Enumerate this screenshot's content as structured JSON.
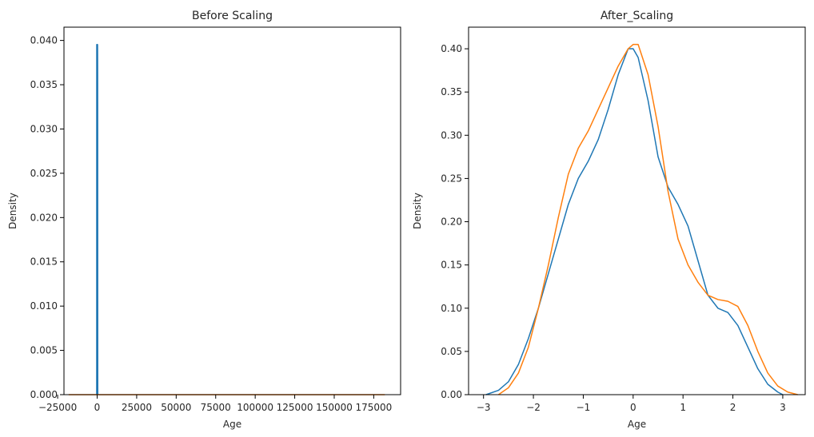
{
  "chart_data": [
    {
      "type": "line",
      "title": "Before Scaling",
      "xlabel": "Age",
      "ylabel": "Density",
      "xlim": [
        -21000,
        192000
      ],
      "ylim": [
        0,
        0.0415
      ],
      "xticks": [
        -25000,
        0,
        25000,
        50000,
        75000,
        100000,
        125000,
        150000,
        175000
      ],
      "xtick_labels": [
        "−25000",
        "0",
        "25000",
        "50000",
        "75000",
        "100000",
        "125000",
        "150000",
        "175000"
      ],
      "yticks": [
        0.0,
        0.005,
        0.01,
        0.015,
        0.02,
        0.025,
        0.03,
        0.035,
        0.04
      ],
      "ytick_labels": [
        "0.000",
        "0.005",
        "0.010",
        "0.015",
        "0.020",
        "0.025",
        "0.030",
        "0.035",
        "0.040"
      ],
      "grid": false,
      "series": [
        {
          "color": "#1f77b4",
          "x": [
            -40,
            -20,
            -10,
            0,
            10,
            20,
            40,
            60,
            80,
            100,
            120,
            140
          ],
          "y": [
            0,
            0.0035,
            0.03,
            0.0395,
            0.0392,
            0.0388,
            0.0375,
            0.036,
            0.03,
            0.012,
            0.002,
            0
          ]
        },
        {
          "color": "#ff7f0e",
          "x": [
            -18000,
            0,
            25000,
            50000,
            75000,
            100000,
            125000,
            150000,
            175000,
            182000
          ],
          "y": [
            0,
            4e-06,
            5e-06,
            4e-06,
            3e-06,
            2e-06,
            2e-06,
            1e-06,
            1e-06,
            0
          ]
        }
      ]
    },
    {
      "type": "line",
      "title": "After_Scaling",
      "xlabel": "Age",
      "ylabel": "Density",
      "xlim": [
        -3.3,
        3.45
      ],
      "ylim": [
        0,
        0.425
      ],
      "xticks": [
        -3,
        -2,
        -1,
        0,
        1,
        2,
        3
      ],
      "xtick_labels": [
        "−3",
        "−2",
        "−1",
        "0",
        "1",
        "2",
        "3"
      ],
      "yticks": [
        0.0,
        0.05,
        0.1,
        0.15,
        0.2,
        0.25,
        0.3,
        0.35,
        0.4
      ],
      "ytick_labels": [
        "0.00",
        "0.05",
        "0.10",
        "0.15",
        "0.20",
        "0.25",
        "0.30",
        "0.35",
        "0.40"
      ],
      "grid": false,
      "series": [
        {
          "color": "#1f77b4",
          "x": [
            -2.95,
            -2.7,
            -2.5,
            -2.3,
            -2.1,
            -1.9,
            -1.7,
            -1.5,
            -1.3,
            -1.1,
            -0.9,
            -0.7,
            -0.5,
            -0.3,
            -0.1,
            0.0,
            0.1,
            0.3,
            0.5,
            0.7,
            0.9,
            1.1,
            1.3,
            1.5,
            1.7,
            1.9,
            2.1,
            2.3,
            2.5,
            2.7,
            2.9,
            3.0
          ],
          "y": [
            0.0,
            0.005,
            0.015,
            0.035,
            0.065,
            0.1,
            0.14,
            0.18,
            0.22,
            0.25,
            0.27,
            0.295,
            0.33,
            0.37,
            0.4,
            0.4,
            0.39,
            0.34,
            0.275,
            0.24,
            0.22,
            0.195,
            0.155,
            0.115,
            0.1,
            0.095,
            0.08,
            0.055,
            0.03,
            0.012,
            0.003,
            0.0
          ]
        },
        {
          "color": "#ff7f0e",
          "x": [
            -2.7,
            -2.5,
            -2.3,
            -2.1,
            -1.9,
            -1.7,
            -1.5,
            -1.3,
            -1.1,
            -0.9,
            -0.7,
            -0.5,
            -0.3,
            -0.1,
            0.0,
            0.1,
            0.3,
            0.5,
            0.7,
            0.9,
            1.1,
            1.3,
            1.5,
            1.7,
            1.9,
            2.1,
            2.3,
            2.5,
            2.7,
            2.9,
            3.1,
            3.3
          ],
          "y": [
            0.0,
            0.008,
            0.025,
            0.055,
            0.1,
            0.15,
            0.205,
            0.255,
            0.285,
            0.305,
            0.33,
            0.355,
            0.38,
            0.4,
            0.405,
            0.405,
            0.37,
            0.31,
            0.235,
            0.18,
            0.15,
            0.13,
            0.115,
            0.11,
            0.108,
            0.102,
            0.08,
            0.05,
            0.025,
            0.01,
            0.003,
            0.0
          ]
        }
      ]
    }
  ]
}
